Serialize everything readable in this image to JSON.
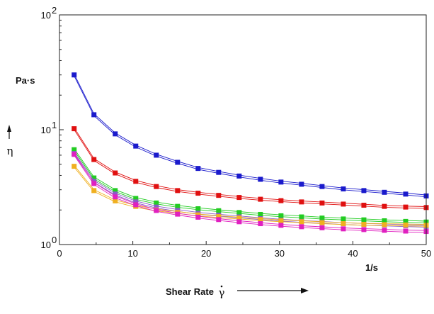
{
  "chart_data": {
    "type": "line",
    "x_axis": {
      "label": "Shear Rate",
      "label_symbol": "γ",
      "unit": "1/s",
      "min": 0,
      "max": 50,
      "ticks": [
        0,
        10,
        20,
        30,
        40,
        50
      ]
    },
    "y_axis": {
      "label": "η",
      "unit": "Pa·s",
      "scale": "log",
      "min": 1,
      "max": 100,
      "ticks": [
        {
          "value": 1,
          "base": "10",
          "exp": "0"
        },
        {
          "value": 10,
          "base": "10",
          "exp": "1"
        },
        {
          "value": 100,
          "base": "10",
          "exp": "2"
        }
      ]
    },
    "grid": false,
    "x": [
      2,
      4.7,
      7.6,
      10.4,
      13.2,
      16.1,
      18.9,
      21.7,
      24.5,
      27.4,
      30.2,
      33.0,
      35.8,
      38.7,
      41.5,
      44.3,
      47.2,
      50
    ],
    "series": [
      {
        "color": "#1a1acc",
        "values": [
          30,
          13.5,
          9.2,
          7.2,
          6.0,
          5.2,
          4.6,
          4.25,
          3.95,
          3.7,
          3.5,
          3.35,
          3.2,
          3.05,
          2.95,
          2.85,
          2.75,
          2.65
        ]
      },
      {
        "color": "#e01010",
        "values": [
          10.2,
          5.5,
          4.2,
          3.55,
          3.2,
          2.95,
          2.8,
          2.68,
          2.57,
          2.48,
          2.41,
          2.35,
          2.3,
          2.25,
          2.2,
          2.15,
          2.12,
          2.1
        ]
      },
      {
        "color": "#22cc22",
        "values": [
          6.7,
          3.8,
          2.95,
          2.52,
          2.3,
          2.15,
          2.05,
          1.97,
          1.9,
          1.83,
          1.78,
          1.74,
          1.7,
          1.67,
          1.64,
          1.61,
          1.59,
          1.57
        ]
      },
      {
        "color": "#8a5ac8",
        "values": [
          6.2,
          3.55,
          2.75,
          2.35,
          2.12,
          1.98,
          1.87,
          1.8,
          1.74,
          1.68,
          1.63,
          1.59,
          1.56,
          1.52,
          1.5,
          1.48,
          1.46,
          1.44
        ]
      },
      {
        "color": "#f0b020",
        "values": [
          4.8,
          2.95,
          2.4,
          2.15,
          2.0,
          1.9,
          1.81,
          1.75,
          1.7,
          1.65,
          1.61,
          1.58,
          1.55,
          1.52,
          1.5,
          1.49,
          1.48,
          1.47
        ]
      },
      {
        "color": "#e020c0",
        "values": [
          6.1,
          3.4,
          2.6,
          2.22,
          1.98,
          1.84,
          1.73,
          1.65,
          1.58,
          1.52,
          1.47,
          1.43,
          1.4,
          1.37,
          1.35,
          1.33,
          1.31,
          1.3
        ]
      }
    ]
  }
}
